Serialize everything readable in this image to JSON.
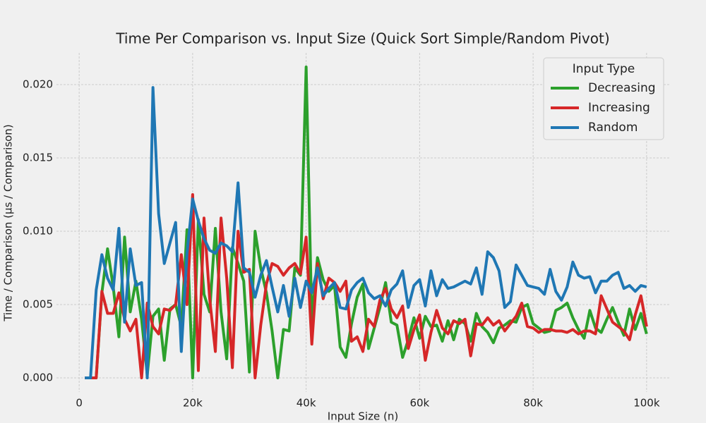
{
  "chart_data": {
    "type": "line",
    "title": "Time Per Comparison vs. Input Size (Quick Sort Simple/Random Pivot)",
    "x_label": "Input Size (n)",
    "y_label": "Time / Comparison (μs / Comparison)",
    "legend_title": "Input Type",
    "legend_position": "upper right",
    "grid": true,
    "x": [
      1000,
      2000,
      3000,
      4000,
      5000,
      6000,
      7000,
      8000,
      9000,
      10000,
      11000,
      12000,
      13000,
      14000,
      15000,
      16000,
      17000,
      18000,
      19000,
      20000,
      21000,
      22000,
      23000,
      24000,
      25000,
      26000,
      27000,
      28000,
      29000,
      30000,
      31000,
      32000,
      33000,
      34000,
      35000,
      36000,
      37000,
      38000,
      39000,
      40000,
      41000,
      42000,
      43000,
      44000,
      45000,
      46000,
      47000,
      48000,
      49000,
      50000,
      51000,
      52000,
      53000,
      54000,
      55000,
      56000,
      57000,
      58000,
      59000,
      60000,
      61000,
      62000,
      63000,
      64000,
      65000,
      66000,
      67000,
      68000,
      69000,
      70000,
      71000,
      72000,
      73000,
      74000,
      75000,
      76000,
      77000,
      78000,
      79000,
      80000,
      81000,
      82000,
      83000,
      84000,
      85000,
      86000,
      87000,
      88000,
      89000,
      90000,
      91000,
      92000,
      93000,
      94000,
      95000,
      96000,
      97000,
      98000,
      99000,
      100000
    ],
    "series": [
      {
        "name": "Decreasing",
        "color": "#2ca02c",
        "values": [
          0,
          0,
          0,
          0.0058,
          0.0088,
          0.0062,
          0.0028,
          0.0096,
          0.0045,
          0.0066,
          0.004,
          0.0002,
          0.0042,
          0.0047,
          0.0012,
          0.0047,
          0.005,
          0.0035,
          0.0101,
          0,
          0.0108,
          0.0057,
          0.0045,
          0.0102,
          0.0045,
          0.0013,
          0.0089,
          0.0078,
          0.0066,
          0.0004,
          0.01,
          0.0075,
          0.0058,
          0.0032,
          0,
          0.0033,
          0.0032,
          0.0075,
          0.007,
          0.0212,
          0.0038,
          0.0082,
          0.0067,
          0.0059,
          0.0063,
          0.0021,
          0.0014,
          0.0037,
          0.0055,
          0.0064,
          0.002,
          0.0034,
          0.0048,
          0.0065,
          0.0038,
          0.0036,
          0.0014,
          0.0026,
          0.0041,
          0.0027,
          0.0042,
          0.0035,
          0.0036,
          0.0025,
          0.0039,
          0.0026,
          0.004,
          0.0037,
          0.0025,
          0.0044,
          0.0035,
          0.0031,
          0.0024,
          0.0034,
          0.0036,
          0.0039,
          0.0038,
          0.0048,
          0.005,
          0.0037,
          0.0034,
          0.0031,
          0.0032,
          0.0046,
          0.0048,
          0.0051,
          0.0041,
          0.0033,
          0.0027,
          0.0046,
          0.0034,
          0.0031,
          0.004,
          0.0048,
          0.0038,
          0.0029,
          0.0047,
          0.0033,
          0.0044,
          0.003
        ]
      },
      {
        "name": "Increasing",
        "color": "#d62728",
        "values": [
          0,
          0,
          0,
          0.0059,
          0.0044,
          0.0044,
          0.0058,
          0.004,
          0.0032,
          0.004,
          0,
          0.0051,
          0.0035,
          0.003,
          0.0047,
          0.0046,
          0.005,
          0.0084,
          0.005,
          0.0125,
          0.0005,
          0.0109,
          0.0054,
          0.0018,
          0.0109,
          0.0068,
          0.0007,
          0.01,
          0.0072,
          0.0074,
          0,
          0.0036,
          0.0064,
          0.0078,
          0.0076,
          0.007,
          0.0075,
          0.0078,
          0.0071,
          0.0096,
          0.0023,
          0.0078,
          0.0054,
          0.0068,
          0.0065,
          0.0059,
          0.0066,
          0.0025,
          0.0028,
          0.0018,
          0.004,
          0.0035,
          0.0053,
          0.0061,
          0.0047,
          0.0041,
          0.0049,
          0.002,
          0.0033,
          0.0043,
          0.0012,
          0.0031,
          0.0046,
          0.0034,
          0.003,
          0.0039,
          0.0037,
          0.004,
          0.0015,
          0.0037,
          0.0036,
          0.0041,
          0.0036,
          0.0039,
          0.0032,
          0.0037,
          0.0042,
          0.0051,
          0.0035,
          0.0034,
          0.0031,
          0.0033,
          0.0033,
          0.0032,
          0.0032,
          0.0031,
          0.0033,
          0.003,
          0.0032,
          0.0032,
          0.003,
          0.0056,
          0.0047,
          0.0038,
          0.0035,
          0.0032,
          0.0026,
          0.0043,
          0.0056,
          0.0035
        ]
      },
      {
        "name": "Random",
        "color": "#1f77b4",
        "values": [
          0,
          0,
          0.006,
          0.0084,
          0.0068,
          0.006,
          0.0102,
          0.0038,
          0.0088,
          0.0063,
          0.0065,
          0,
          0.0198,
          0.0112,
          0.0078,
          0.0092,
          0.0106,
          0.0018,
          0.0085,
          0.0122,
          0.0107,
          0.0095,
          0.0087,
          0.0085,
          0.0092,
          0.009,
          0.0086,
          0.0133,
          0.0075,
          0.0072,
          0.0055,
          0.007,
          0.008,
          0.0062,
          0.0045,
          0.0063,
          0.0042,
          0.0068,
          0.0048,
          0.0066,
          0.0058,
          0.0075,
          0.0056,
          0.0061,
          0.0065,
          0.0048,
          0.0047,
          0.006,
          0.0065,
          0.0068,
          0.0058,
          0.0054,
          0.0056,
          0.0049,
          0.006,
          0.0064,
          0.0073,
          0.0048,
          0.0063,
          0.0067,
          0.0049,
          0.0073,
          0.0056,
          0.0067,
          0.0061,
          0.0062,
          0.0064,
          0.0066,
          0.0064,
          0.0075,
          0.0057,
          0.0086,
          0.0082,
          0.0073,
          0.0048,
          0.0052,
          0.0077,
          0.007,
          0.0063,
          0.0062,
          0.0061,
          0.0057,
          0.0074,
          0.0059,
          0.0053,
          0.0062,
          0.0079,
          0.007,
          0.0068,
          0.0069,
          0.0058,
          0.0066,
          0.0066,
          0.007,
          0.0072,
          0.0061,
          0.0063,
          0.0059,
          0.0063,
          0.0062
        ]
      }
    ],
    "xlim": [
      -4000,
      104000
    ],
    "xticks": [
      0,
      {
        "value": 20000,
        "label": "20k"
      },
      {
        "value": 40000,
        "label": "40k"
      },
      {
        "value": 60000,
        "label": "60k"
      },
      {
        "value": 80000,
        "label": "80k"
      },
      {
        "value": 100000,
        "label": "100k"
      }
    ],
    "ylim": [
      -0.00096,
      0.02216
    ],
    "yticks": [
      {
        "value": 0,
        "label": "0.000"
      },
      {
        "value": 0.005,
        "label": "0.005"
      },
      {
        "value": 0.01,
        "label": "0.010"
      },
      {
        "value": 0.015,
        "label": "0.015"
      },
      {
        "value": 0.02,
        "label": "0.020"
      }
    ]
  }
}
